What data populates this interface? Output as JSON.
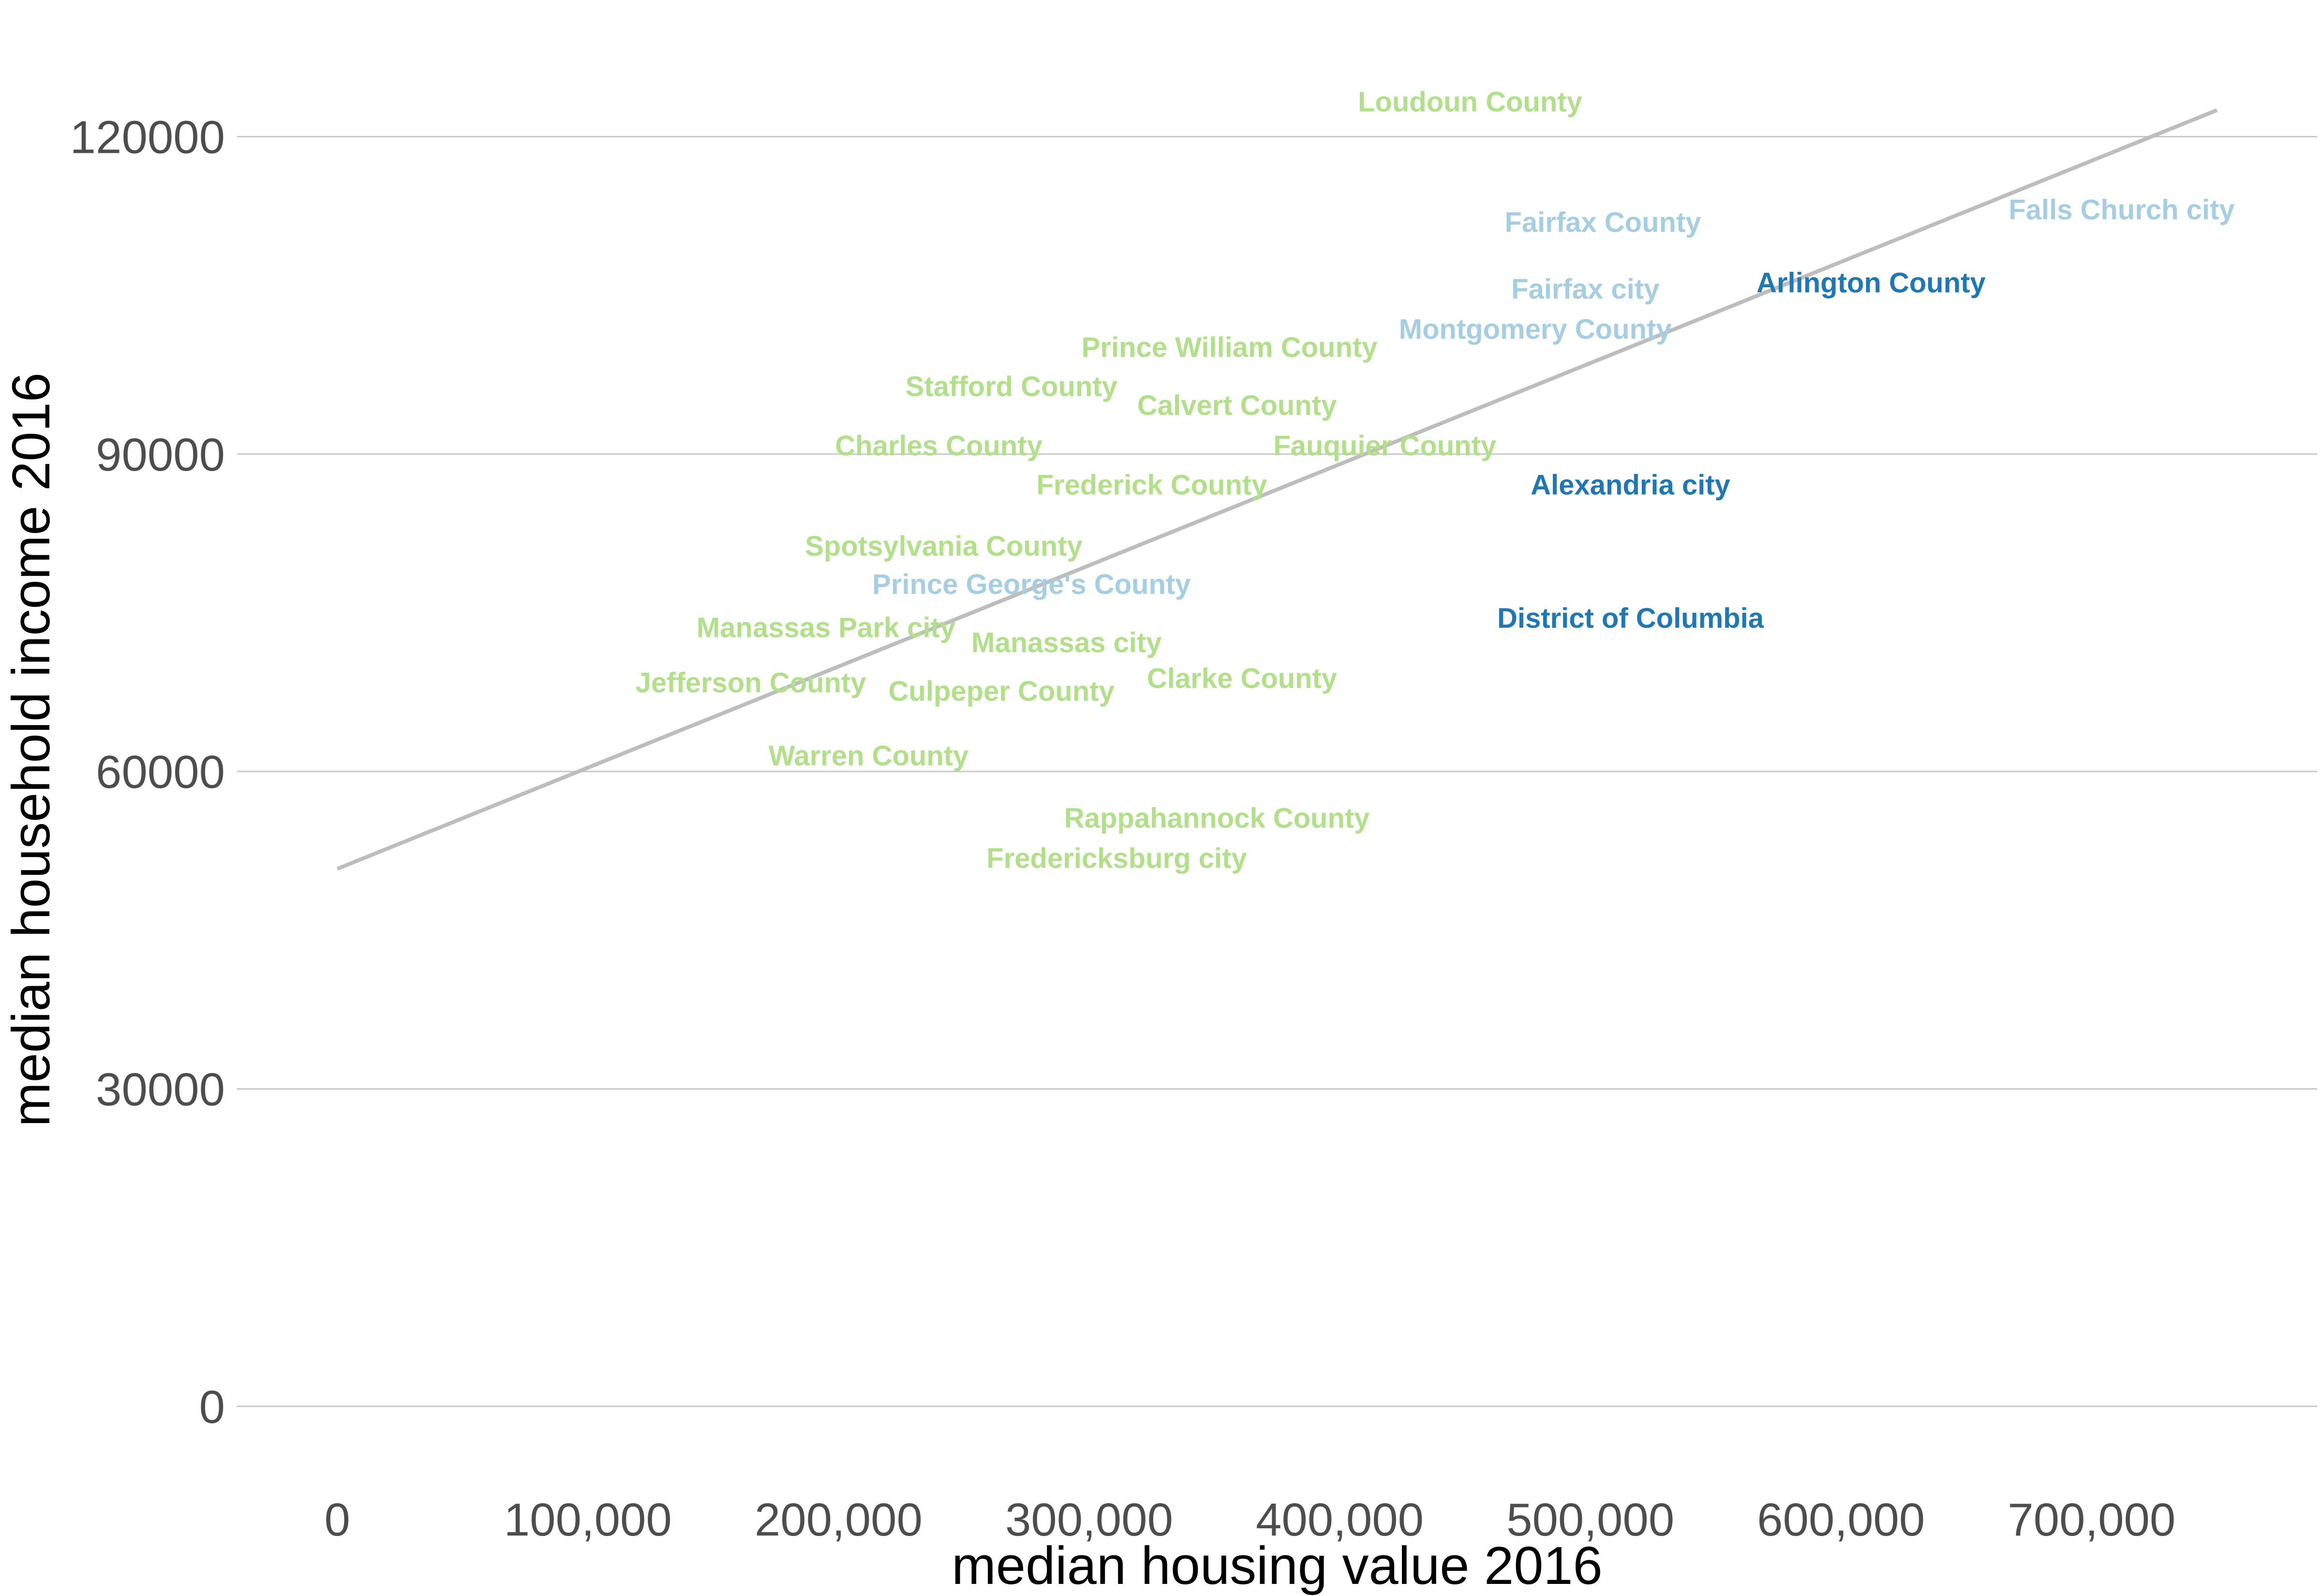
{
  "chart_data": {
    "type": "scatter",
    "title": "",
    "xlabel": "median housing value 2016",
    "ylabel": "median household income 2016",
    "xlim": [
      -40000,
      790000
    ],
    "ylim": [
      -6500,
      132000
    ],
    "grid": {
      "horizontal": true,
      "vertical": false
    },
    "x_ticks": [
      {
        "value": 0,
        "label": "0"
      },
      {
        "value": 100000,
        "label": "100,000"
      },
      {
        "value": 200000,
        "label": "200,000"
      },
      {
        "value": 300000,
        "label": "300,000"
      },
      {
        "value": 400000,
        "label": "400,000"
      },
      {
        "value": 500000,
        "label": "500,000"
      },
      {
        "value": 600000,
        "label": "600,000"
      },
      {
        "value": 700000,
        "label": "700,000"
      }
    ],
    "y_ticks": [
      {
        "value": 0,
        "label": "0"
      },
      {
        "value": 30000,
        "label": "30000"
      },
      {
        "value": 60000,
        "label": "60000"
      },
      {
        "value": 90000,
        "label": "90000"
      },
      {
        "value": 120000,
        "label": "120000"
      }
    ],
    "trend_line": {
      "color": "#bdbdbd",
      "points": [
        [
          0,
          50800
        ],
        [
          750000,
          122500
        ]
      ]
    },
    "colors": {
      "light_green": "#b2df8a",
      "light_blue": "#a6cee3",
      "dark_blue": "#1f78b4"
    },
    "points": [
      {
        "label": "Loudoun County",
        "x": 452000,
        "y": 123300,
        "color": "#b2df8a"
      },
      {
        "label": "Fairfax County",
        "x": 505000,
        "y": 111900,
        "color": "#a6cee3"
      },
      {
        "label": "Falls Church city",
        "x": 712000,
        "y": 113100,
        "color": "#a6cee3"
      },
      {
        "label": "Fairfax city",
        "x": 498000,
        "y": 105600,
        "color": "#a6cee3"
      },
      {
        "label": "Arlington County",
        "x": 612000,
        "y": 106200,
        "color": "#1f78b4"
      },
      {
        "label": "Montgomery County",
        "x": 478000,
        "y": 101800,
        "color": "#a6cee3"
      },
      {
        "label": "Prince William County",
        "x": 356000,
        "y": 100100,
        "color": "#b2df8a"
      },
      {
        "label": "Stafford County",
        "x": 269000,
        "y": 96400,
        "color": "#b2df8a"
      },
      {
        "label": "Calvert County",
        "x": 359000,
        "y": 94600,
        "color": "#b2df8a"
      },
      {
        "label": "Charles County",
        "x": 240000,
        "y": 90800,
        "color": "#b2df8a"
      },
      {
        "label": "Fauquier County",
        "x": 418000,
        "y": 90800,
        "color": "#b2df8a"
      },
      {
        "label": "Frederick County",
        "x": 325000,
        "y": 87100,
        "color": "#b2df8a"
      },
      {
        "label": "Alexandria city",
        "x": 516000,
        "y": 87100,
        "color": "#1f78b4"
      },
      {
        "label": "Spotsylvania County",
        "x": 242000,
        "y": 81300,
        "color": "#b2df8a"
      },
      {
        "label": "Prince George's County",
        "x": 277000,
        "y": 77700,
        "color": "#a6cee3"
      },
      {
        "label": "District of Columbia",
        "x": 516000,
        "y": 74500,
        "color": "#1f78b4"
      },
      {
        "label": "Manassas Park city",
        "x": 195000,
        "y": 73600,
        "color": "#b2df8a"
      },
      {
        "label": "Manassas city",
        "x": 291000,
        "y": 72200,
        "color": "#b2df8a"
      },
      {
        "label": "Jefferson County",
        "x": 165000,
        "y": 68400,
        "color": "#b2df8a"
      },
      {
        "label": "Clarke County",
        "x": 361000,
        "y": 68800,
        "color": "#b2df8a"
      },
      {
        "label": "Culpeper County",
        "x": 265000,
        "y": 67600,
        "color": "#b2df8a"
      },
      {
        "label": "Warren County",
        "x": 212000,
        "y": 61500,
        "color": "#b2df8a"
      },
      {
        "label": "Rappahannock County",
        "x": 351000,
        "y": 55600,
        "color": "#b2df8a"
      },
      {
        "label": "Fredericksburg city",
        "x": 311000,
        "y": 51800,
        "color": "#b2df8a"
      }
    ]
  }
}
